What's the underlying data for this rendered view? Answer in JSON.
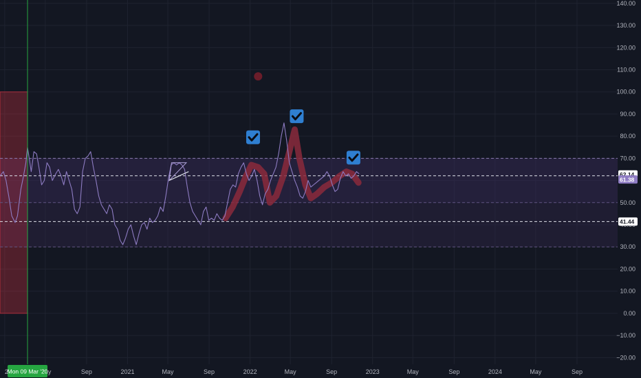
{
  "chart_data": {
    "type": "line",
    "title": "",
    "xlabel": "",
    "ylabel": "",
    "ylim": [
      -25,
      142
    ],
    "y_ticks": [
      "140.00",
      "130.00",
      "120.00",
      "110.00",
      "100.00",
      "90.00",
      "80.00",
      "70.00",
      "60.00",
      "50.00",
      "40.00",
      "30.00",
      "20.00",
      "10.00",
      "0.00",
      "−10.00",
      "−20.00"
    ],
    "x_ticks": [
      {
        "label": "20",
        "date": "2020-01-01"
      },
      {
        "label": "May",
        "date": "2020-05-01"
      },
      {
        "label": "Sep",
        "date": "2020-09-01"
      },
      {
        "label": "2021",
        "date": "2021-01-01"
      },
      {
        "label": "May",
        "date": "2021-05-01"
      },
      {
        "label": "Sep",
        "date": "2021-09-01"
      },
      {
        "label": "2022",
        "date": "2022-01-01"
      },
      {
        "label": "May",
        "date": "2022-05-01"
      },
      {
        "label": "Sep",
        "date": "2022-09-01"
      },
      {
        "label": "2023",
        "date": "2023-01-01"
      },
      {
        "label": "May",
        "date": "2023-05-01"
      },
      {
        "label": "Sep",
        "date": "2023-09-01"
      },
      {
        "label": "2024",
        "date": "2024-01-01"
      },
      {
        "label": "May",
        "date": "2024-05-01"
      },
      {
        "label": "Sep",
        "date": "2024-09-01"
      }
    ],
    "x_range": [
      "2019-12-18",
      "2024-12-31"
    ],
    "crosshair": {
      "label": "Mon 09 Mar '20",
      "date": "2020-03-09"
    },
    "bands": [
      {
        "from": 50,
        "to": 70,
        "color": "#3a2d5a"
      },
      {
        "from": 30,
        "to": 50,
        "color": "#2f2646"
      }
    ],
    "reference_lines": [
      {
        "value": 70,
        "style": "dashed",
        "color": "#8a7bb0"
      },
      {
        "value": 50,
        "style": "dashed",
        "color": "#5f5380"
      },
      {
        "value": 30,
        "style": "dashed",
        "color": "#5f5380"
      },
      {
        "value": 62.14,
        "style": "dashed",
        "color": "#e0e3eb"
      },
      {
        "value": 41.44,
        "style": "dashed",
        "color": "#e0e3eb"
      }
    ],
    "red_box": {
      "from_date": "2019-12-18",
      "to_date": "2020-03-09",
      "from": 0,
      "to": 100,
      "color": "#f23645"
    },
    "series": [
      {
        "color": "#8e7cc3",
        "x": [
          "2019-12-18",
          "2019-12-28",
          "2020-01-05",
          "2020-01-14",
          "2020-01-22",
          "2020-02-01",
          "2020-02-08",
          "2020-02-18",
          "2020-02-26",
          "2020-03-04",
          "2020-03-09",
          "2020-03-14",
          "2020-03-20",
          "2020-03-28",
          "2020-04-05",
          "2020-04-12",
          "2020-04-20",
          "2020-04-28",
          "2020-05-06",
          "2020-05-14",
          "2020-05-22",
          "2020-06-01",
          "2020-06-09",
          "2020-06-17",
          "2020-06-25",
          "2020-07-03",
          "2020-07-11",
          "2020-07-19",
          "2020-07-27",
          "2020-08-04",
          "2020-08-12",
          "2020-08-20",
          "2020-08-28",
          "2020-09-05",
          "2020-09-13",
          "2020-09-21",
          "2020-09-29",
          "2020-10-07",
          "2020-10-15",
          "2020-10-23",
          "2020-10-31",
          "2020-11-08",
          "2020-11-16",
          "2020-11-24",
          "2020-12-02",
          "2020-12-10",
          "2020-12-18",
          "2020-12-26",
          "2021-01-03",
          "2021-01-11",
          "2021-01-19",
          "2021-01-27",
          "2021-02-04",
          "2021-02-12",
          "2021-02-20",
          "2021-02-28",
          "2021-03-08",
          "2021-03-16",
          "2021-03-24",
          "2021-04-01",
          "2021-04-09",
          "2021-04-17",
          "2021-04-25",
          "2021-05-03",
          "2021-05-11",
          "2021-05-19",
          "2021-05-27",
          "2021-06-04",
          "2021-06-12",
          "2021-06-20",
          "2021-06-28",
          "2021-07-06",
          "2021-07-14",
          "2021-07-22",
          "2021-07-30",
          "2021-08-07",
          "2021-08-15",
          "2021-08-23",
          "2021-08-31",
          "2021-09-08",
          "2021-09-16",
          "2021-09-24",
          "2021-10-02",
          "2021-10-10",
          "2021-10-18",
          "2021-10-26",
          "2021-11-03",
          "2021-11-11",
          "2021-11-19",
          "2021-11-27",
          "2021-12-05",
          "2021-12-13",
          "2021-12-21",
          "2021-12-29",
          "2022-01-06",
          "2022-01-14",
          "2022-01-22",
          "2022-01-30",
          "2022-02-07",
          "2022-02-15",
          "2022-02-23",
          "2022-03-03",
          "2022-03-11",
          "2022-03-19",
          "2022-03-27",
          "2022-04-04",
          "2022-04-12",
          "2022-04-20",
          "2022-04-28",
          "2022-05-06",
          "2022-05-14",
          "2022-05-22",
          "2022-05-30",
          "2022-06-07",
          "2022-06-15",
          "2022-06-23",
          "2022-07-01",
          "2022-07-09",
          "2022-07-17",
          "2022-07-25",
          "2022-08-02",
          "2022-08-10",
          "2022-08-18",
          "2022-08-26",
          "2022-09-03",
          "2022-09-11",
          "2022-09-19",
          "2022-09-27",
          "2022-10-05",
          "2022-10-13",
          "2022-10-21",
          "2022-10-29",
          "2022-11-06",
          "2022-11-14",
          "2022-11-22"
        ],
        "values": [
          62,
          64,
          60,
          52,
          44,
          41,
          44,
          56,
          62,
          68,
          75,
          70,
          64,
          73,
          72,
          66,
          58,
          60,
          68,
          66,
          60,
          63,
          65,
          62,
          58,
          64,
          60,
          56,
          47,
          45,
          48,
          64,
          70,
          71,
          73,
          66,
          60,
          53,
          49,
          47,
          45,
          49,
          47,
          40,
          38,
          33,
          31,
          34,
          38,
          40,
          35,
          31,
          36,
          40,
          41,
          38,
          43,
          41,
          42,
          44,
          48,
          46,
          53,
          61,
          67,
          68,
          67,
          68,
          67,
          65,
          57,
          50,
          46,
          44,
          42,
          40,
          46,
          48,
          42,
          43,
          42,
          45,
          43,
          42,
          44,
          50,
          56,
          58,
          57,
          63,
          66,
          68,
          63,
          60,
          62,
          65,
          60,
          53,
          49,
          54,
          56,
          60,
          63,
          66,
          72,
          80,
          86,
          78,
          68,
          64,
          60,
          57,
          53,
          52,
          55,
          60,
          57,
          58,
          59,
          60,
          61,
          62,
          64,
          62,
          58,
          55,
          56,
          61,
          64,
          62,
          63,
          61,
          62,
          64,
          63
        ]
      }
    ],
    "highlight_path": {
      "color": "#8b2a3c",
      "x": [
        "2021-10-20",
        "2021-11-10",
        "2021-12-01",
        "2021-12-20",
        "2022-01-05",
        "2022-01-25",
        "2022-02-12",
        "2022-03-01",
        "2022-03-20",
        "2022-04-10",
        "2022-04-28",
        "2022-05-14",
        "2022-05-28",
        "2022-06-15",
        "2022-07-01",
        "2022-07-20",
        "2022-08-10",
        "2022-09-01",
        "2022-09-25",
        "2022-10-15",
        "2022-11-01",
        "2022-11-20"
      ],
      "values": [
        43,
        48,
        55,
        62,
        67,
        66,
        63,
        50,
        53,
        62,
        73,
        83,
        70,
        58,
        52,
        54,
        57,
        59,
        62,
        64,
        63,
        59
      ]
    },
    "marker": {
      "date": "2022-01-25",
      "value": 107,
      "color": "#6b1d2a"
    },
    "checkmarks": [
      {
        "date": "2022-01-10",
        "value": 79.5
      },
      {
        "date": "2022-05-20",
        "value": 89
      },
      {
        "date": "2022-11-05",
        "value": 70.3
      }
    ],
    "triangle": {
      "color": "#b4a7e0",
      "points": [
        {
          "date": "2021-05-12",
          "value": 68
        },
        {
          "date": "2021-06-25",
          "value": 68
        },
        {
          "date": "2021-05-05",
          "value": 60
        },
        {
          "date": "2021-07-02",
          "value": 64
        }
      ]
    },
    "price_tags": [
      {
        "label": "62.14",
        "value": 62.14,
        "bg": "#ffffff",
        "fg": "#131722"
      },
      {
        "label": "61.38",
        "value": 61.38,
        "bg": "#8e7cc3",
        "fg": "#ffffff"
      },
      {
        "label": "41.44",
        "value": 41.44,
        "bg": "#ffffff",
        "fg": "#131722"
      }
    ],
    "grid": true,
    "legend": "none"
  }
}
